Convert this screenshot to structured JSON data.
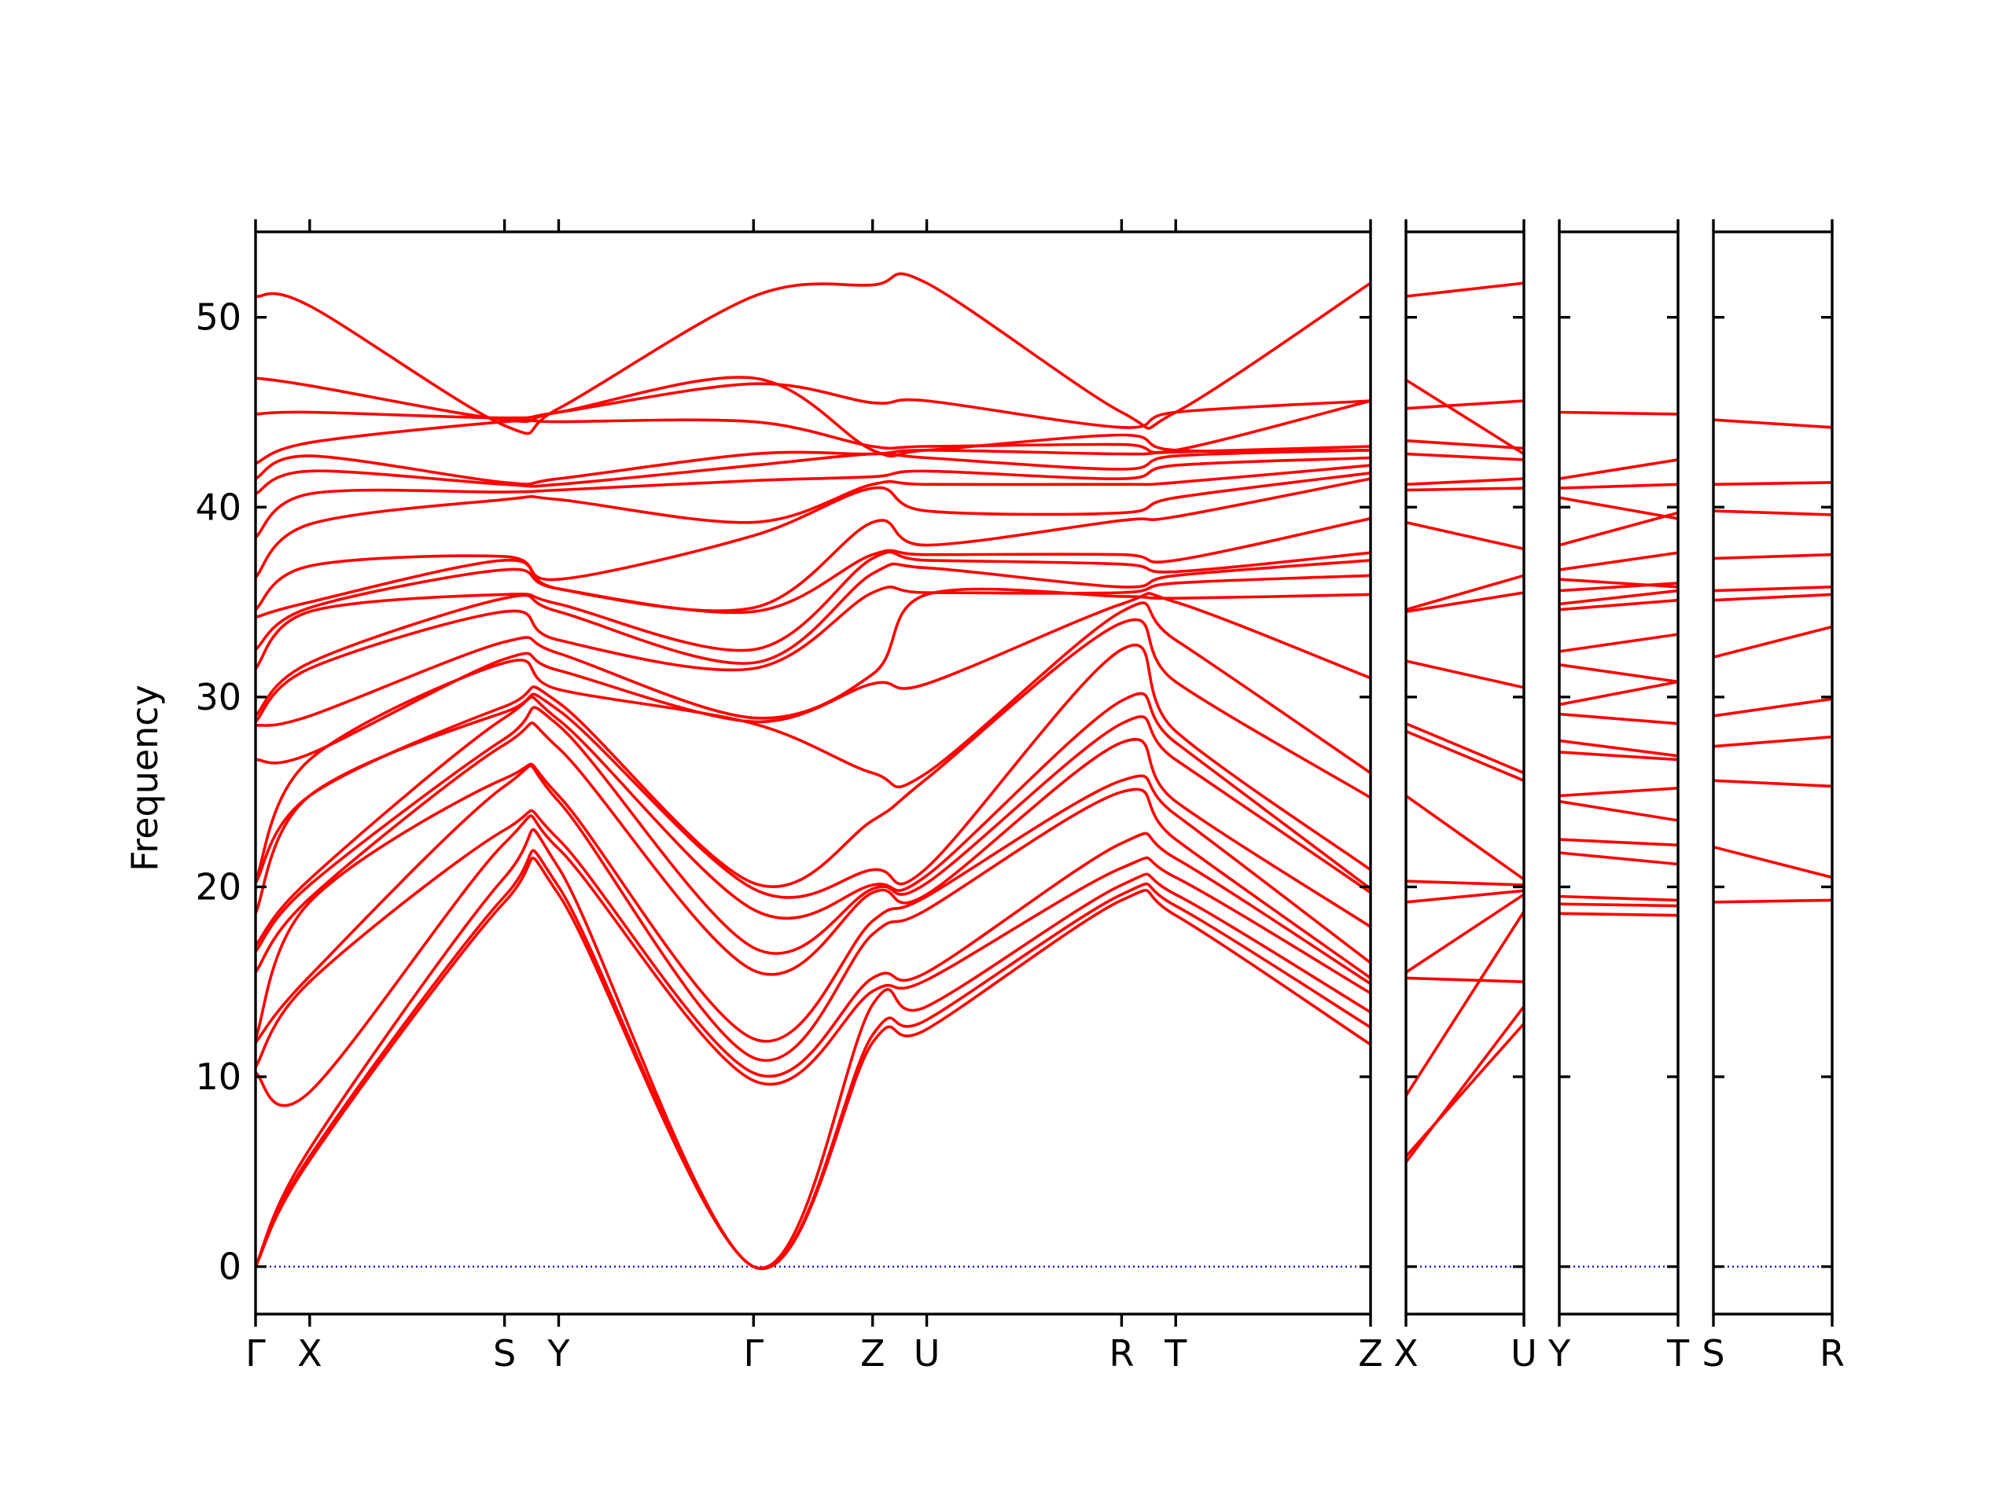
{
  "chart_data": {
    "type": "line",
    "title": "",
    "ylabel": "Frequency",
    "xlabel": "",
    "ylim": [
      -2.5,
      54.5
    ],
    "yticks": [
      0,
      10,
      20,
      30,
      40,
      50
    ],
    "grid": false,
    "colors": {
      "bands": "#ff0000",
      "zero_line": "#0000cc",
      "axes": "#000000"
    },
    "panels": [
      {
        "labels": [
          "Γ",
          "X",
          "S",
          "Y",
          "Γ",
          "Z",
          "U",
          "R",
          "T",
          "Z"
        ],
        "label_positions": [
          0,
          0.5,
          2.3,
          2.8,
          4.6,
          5.7,
          6.2,
          8.0,
          8.5,
          10.3
        ]
      },
      {
        "labels": [
          "X",
          "U"
        ],
        "label_positions": [
          0,
          1
        ]
      },
      {
        "labels": [
          "Y",
          "T"
        ],
        "label_positions": [
          0,
          1
        ]
      },
      {
        "labels": [
          "S",
          "R"
        ],
        "label_positions": [
          0,
          1
        ]
      }
    ],
    "bands_main": [
      [
        0,
        5.6,
        19.2,
        19.6,
        0,
        11.8,
        12.5,
        19.3,
        18.5,
        11.7
      ],
      [
        0,
        5.8,
        19.5,
        20.0,
        0,
        12.2,
        13.0,
        19.6,
        19.0,
        12.6
      ],
      [
        0,
        6.2,
        20.5,
        21.0,
        0,
        13.8,
        13.7,
        20.1,
        19.6,
        13.4
      ],
      [
        10.2,
        9.2,
        22.3,
        22.0,
        9.8,
        14.5,
        15.1,
        21.0,
        20.5,
        14.4
      ],
      [
        10.5,
        15.0,
        23.0,
        22.5,
        10.2,
        15.2,
        15.5,
        22.3,
        21.5,
        14.9
      ],
      [
        11.8,
        15.3,
        25.3,
        24.5,
        11.0,
        17.5,
        18.8,
        25.0,
        22.5,
        15.2
      ],
      [
        12.0,
        19.2,
        25.7,
        24.8,
        12.0,
        18.2,
        19.5,
        25.6,
        23.8,
        16.0
      ],
      [
        15.5,
        19.4,
        27.5,
        27.3,
        15.6,
        19.7,
        19.6,
        27.6,
        24.5,
        17.9
      ],
      [
        16.6,
        20.1,
        27.8,
        28.5,
        16.8,
        19.9,
        20.2,
        28.6,
        26.7,
        19.7
      ],
      [
        16.9,
        20.4,
        28.9,
        28.8,
        18.8,
        20.1,
        20.6,
        29.8,
        27.6,
        19.9
      ],
      [
        18.6,
        24.8,
        29.2,
        29.3,
        19.9,
        20.9,
        21.0,
        32.5,
        28.2,
        20.9
      ],
      [
        20.2,
        24.8,
        29.5,
        29.7,
        20.2,
        23.5,
        25.7,
        33.9,
        30.8,
        24.7
      ],
      [
        20.3,
        26.7,
        31.8,
        30.4,
        28.6,
        26.0,
        26.0,
        34.5,
        33.0,
        26.0
      ],
      [
        26.7,
        27.0,
        32.0,
        31.4,
        28.7,
        30.7,
        30.7,
        34.9,
        35.0,
        31.0
      ],
      [
        28.5,
        29.0,
        32.9,
        32.3,
        28.9,
        31.2,
        35.4,
        35.3,
        35.2,
        35.4
      ],
      [
        28.7,
        31.5,
        34.5,
        33.0,
        31.5,
        35.5,
        35.5,
        35.5,
        36.0,
        36.4
      ],
      [
        29.0,
        31.8,
        35.2,
        34.5,
        31.8,
        36.5,
        36.8,
        35.8,
        36.4,
        37.2
      ],
      [
        31.5,
        34.5,
        35.4,
        34.9,
        32.5,
        37.3,
        37.2,
        37.0,
        36.6,
        37.6
      ],
      [
        32.5,
        34.7,
        36.7,
        35.7,
        34.5,
        37.5,
        37.5,
        37.5,
        37.2,
        39.4
      ],
      [
        34.2,
        35.0,
        37.2,
        35.7,
        34.7,
        39.2,
        38.0,
        39.3,
        39.5,
        41.5
      ],
      [
        34.6,
        36.9,
        37.4,
        36.2,
        38.5,
        41.0,
        39.8,
        39.7,
        40.5,
        41.8
      ],
      [
        36.3,
        39.1,
        40.4,
        40.4,
        39.2,
        41.2,
        41.2,
        41.2,
        41.3,
        42.2
      ],
      [
        38.4,
        40.7,
        40.8,
        40.9,
        41.4,
        41.6,
        41.9,
        41.5,
        42.2,
        42.6
      ],
      [
        40.7,
        41.9,
        41.2,
        41.2,
        42.2,
        42.8,
        42.6,
        42.0,
        42.7,
        43.0
      ],
      [
        41.5,
        42.7,
        41.3,
        41.5,
        42.8,
        42.8,
        43.0,
        42.8,
        42.9,
        43.2
      ],
      [
        42.3,
        43.4,
        44.5,
        44.5,
        44.5,
        43.2,
        43.2,
        43.3,
        43.0,
        45.6
      ],
      [
        44.9,
        45.0,
        44.7,
        45.0,
        46.5,
        45.5,
        45.6,
        44.2,
        45.0,
        45.6
      ],
      [
        46.8,
        46.4,
        44.6,
        45.0,
        46.8,
        43.0,
        43.0,
        43.8,
        43.0,
        43.0
      ],
      [
        51.1,
        50.6,
        44.3,
        45.2,
        51.1,
        51.7,
        51.8,
        45.0,
        45.0,
        51.8
      ]
    ],
    "bands_XU": [
      [
        5.5,
        13.7
      ],
      [
        5.8,
        12.8
      ],
      [
        9.0,
        18.7
      ],
      [
        15.2,
        15.0
      ],
      [
        15.5,
        19.6
      ],
      [
        19.2,
        19.8
      ],
      [
        20.3,
        20.1
      ],
      [
        24.8,
        20.4
      ],
      [
        28.2,
        25.6
      ],
      [
        28.6,
        26.0
      ],
      [
        31.9,
        30.5
      ],
      [
        34.5,
        35.5
      ],
      [
        34.6,
        36.4
      ],
      [
        39.2,
        37.8
      ],
      [
        40.9,
        41.0
      ],
      [
        41.2,
        41.5
      ],
      [
        42.8,
        42.5
      ],
      [
        43.5,
        43.1
      ],
      [
        45.2,
        45.6
      ],
      [
        46.7,
        42.8
      ],
      [
        51.1,
        51.8
      ]
    ],
    "bands_YT": [
      [
        18.6,
        18.5
      ],
      [
        19.1,
        19.0
      ],
      [
        19.5,
        19.3
      ],
      [
        21.8,
        21.2
      ],
      [
        22.5,
        22.2
      ],
      [
        24.5,
        23.5
      ],
      [
        24.8,
        25.2
      ],
      [
        27.1,
        26.7
      ],
      [
        27.7,
        26.9
      ],
      [
        29.1,
        28.6
      ],
      [
        29.6,
        30.8
      ],
      [
        31.7,
        30.8
      ],
      [
        32.4,
        33.3
      ],
      [
        34.6,
        35.1
      ],
      [
        34.9,
        35.6
      ],
      [
        35.6,
        36.0
      ],
      [
        36.2,
        35.8
      ],
      [
        36.7,
        37.6
      ],
      [
        38.0,
        39.7
      ],
      [
        40.5,
        39.4
      ],
      [
        41.0,
        41.2
      ],
      [
        41.5,
        42.5
      ],
      [
        45.0,
        44.9
      ]
    ],
    "bands_SR": [
      [
        19.2,
        19.3
      ],
      [
        22.1,
        20.5
      ],
      [
        25.6,
        25.3
      ],
      [
        27.4,
        27.9
      ],
      [
        29.0,
        29.9
      ],
      [
        32.1,
        33.7
      ],
      [
        35.1,
        35.4
      ],
      [
        35.6,
        35.8
      ],
      [
        37.3,
        37.5
      ],
      [
        39.8,
        39.6
      ],
      [
        41.2,
        41.3
      ],
      [
        44.6,
        44.2
      ]
    ]
  }
}
